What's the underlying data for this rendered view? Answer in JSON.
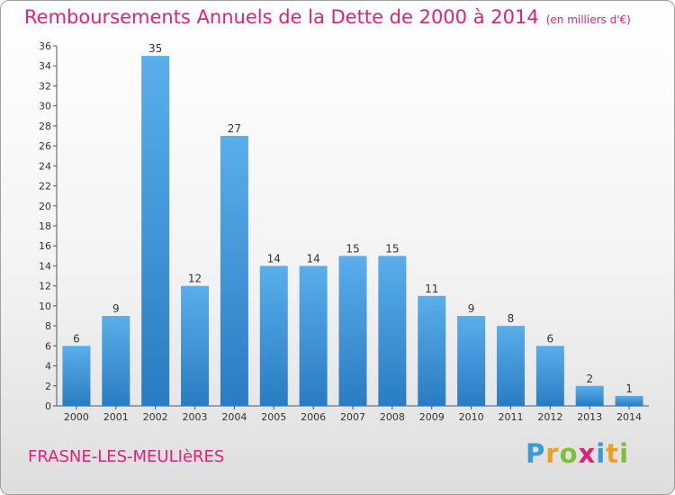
{
  "title": "Remboursements Annuels de la Dette de 2000 à 2014",
  "subtitle": "(en milliers d'€)",
  "commune": "FRASNE-LES-MEULIèRES",
  "logo": {
    "letters": [
      "P",
      "r",
      "o",
      "x",
      "i",
      "t",
      "i"
    ],
    "colors": [
      "#3a9bd8",
      "#f0a020",
      "#7cbf3a",
      "#e2207a",
      "#3a9bd8",
      "#f0a020",
      "#7cbf3a"
    ]
  },
  "colors": {
    "bar": "#3a8fd4",
    "accent": "#e2207a"
  },
  "chart_data": {
    "type": "bar",
    "categories": [
      "2000",
      "2001",
      "2002",
      "2003",
      "2004",
      "2005",
      "2006",
      "2007",
      "2008",
      "2009",
      "2010",
      "2011",
      "2012",
      "2013",
      "2014"
    ],
    "values": [
      6,
      9,
      35,
      12,
      27,
      14,
      14,
      15,
      15,
      11,
      9,
      8,
      6,
      2,
      1
    ],
    "ylim": [
      0,
      36
    ],
    "yticks": [
      0,
      2,
      4,
      6,
      8,
      10,
      12,
      14,
      16,
      18,
      20,
      22,
      24,
      26,
      28,
      30,
      32,
      34,
      36
    ],
    "grid": false
  }
}
